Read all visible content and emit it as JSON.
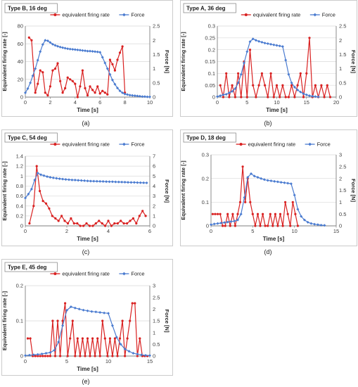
{
  "figure": {
    "panel_labels": [
      "(a)",
      "(b)",
      "(c)",
      "(d)",
      "(e)"
    ]
  },
  "colors": {
    "rate": "#d92121",
    "force": "#4a7bd0",
    "grid": "#d9d9d9",
    "axis": "#7f7f7f"
  },
  "chart_data": [
    {
      "type": "line",
      "title": "Type B, 16 deg",
      "xlabel": "Time  [s]",
      "ylabel": "Equivalent firing rate  [-]",
      "y2label": "Force  [N]",
      "xlim": [
        0,
        10
      ],
      "xticks": [
        "0",
        "2",
        "4",
        "6",
        "8",
        "10"
      ],
      "ylim": [
        0,
        80
      ],
      "yticks": [
        "0",
        "20",
        "40",
        "60",
        "80"
      ],
      "y2lim": [
        0,
        2.5
      ],
      "y2ticks": [
        "0",
        "0.5",
        "1",
        "1.5",
        "2",
        "2.5"
      ],
      "legend": "top",
      "series": [
        {
          "name": "equivalent firing rate",
          "axis": "left",
          "marker": "circle",
          "x": [
            0.3,
            0.5,
            0.8,
            1.0,
            1.2,
            1.4,
            1.6,
            1.8,
            2.0,
            2.2,
            2.4,
            2.6,
            2.8,
            3.0,
            3.2,
            3.4,
            3.6,
            3.8,
            4.0,
            4.2,
            4.4,
            4.6,
            4.8,
            5.0,
            5.2,
            5.4,
            5.6,
            5.8,
            6.0,
            6.2,
            6.4,
            6.6,
            6.8,
            7.0,
            7.2,
            7.4,
            7.6,
            7.8,
            8.0
          ],
          "y": [
            67,
            64,
            5,
            15,
            30,
            28,
            5,
            2,
            12,
            30,
            32,
            38,
            18,
            5,
            10,
            22,
            20,
            18,
            15,
            0,
            12,
            30,
            10,
            2,
            12,
            8,
            5,
            12,
            4,
            7,
            5,
            3,
            42,
            37,
            30,
            42,
            50,
            57,
            5
          ]
        },
        {
          "name": "Force",
          "axis": "right",
          "marker": "diamond",
          "x": [
            0,
            0.2,
            0.4,
            0.6,
            0.8,
            1.0,
            1.2,
            1.4,
            1.6,
            1.8,
            2.0,
            2.2,
            2.4,
            2.6,
            2.8,
            3.0,
            3.2,
            3.4,
            3.6,
            3.8,
            4.0,
            4.2,
            4.4,
            4.6,
            4.8,
            5.0,
            5.2,
            5.4,
            5.6,
            5.8,
            6.0,
            6.2,
            6.4,
            6.6,
            6.8,
            7.0,
            7.2,
            7.4,
            7.6,
            7.8,
            8.0,
            8.2,
            8.4,
            8.6,
            8.8,
            9.0,
            9.2,
            9.4,
            9.6,
            9.8,
            10.0
          ],
          "y": [
            0.15,
            0.3,
            0.5,
            0.75,
            1.0,
            1.3,
            1.6,
            1.85,
            2.0,
            1.98,
            1.92,
            1.86,
            1.82,
            1.79,
            1.76,
            1.74,
            1.72,
            1.7,
            1.69,
            1.68,
            1.67,
            1.66,
            1.65,
            1.64,
            1.63,
            1.62,
            1.62,
            1.61,
            1.6,
            1.59,
            1.58,
            1.4,
            1.2,
            1.0,
            0.8,
            0.6,
            0.45,
            0.32,
            0.22,
            0.15,
            0.11,
            0.09,
            0.07,
            0.06,
            0.05,
            0.04,
            0.03,
            0.02,
            0.02,
            0.01,
            0.01
          ]
        }
      ]
    },
    {
      "type": "line",
      "title": "Type A, 36 deg",
      "xlabel": "Time  [s]",
      "ylabel": "Equivalent firing rate  [-]",
      "y2label": "Force  [N]",
      "xlim": [
        0,
        20
      ],
      "xticks": [
        "0",
        "5",
        "10",
        "15",
        "20"
      ],
      "ylim": [
        0,
        0.3
      ],
      "yticks": [
        "0",
        "0.05",
        "0.1",
        "0.15",
        "0.2",
        "0.25",
        "0.3"
      ],
      "y2lim": [
        0,
        2.5
      ],
      "y2ticks": [
        "0",
        "0.5",
        "1",
        "1.5",
        "2",
        "2.5"
      ],
      "legend": "top",
      "series": [
        {
          "name": "equivalent firing rate",
          "axis": "left",
          "marker": "circle",
          "x": [
            0.5,
            1.0,
            1.5,
            2.0,
            2.5,
            3.0,
            3.5,
            4.0,
            4.5,
            5.0,
            5.5,
            6.0,
            6.5,
            7.0,
            7.5,
            8.0,
            8.5,
            9.0,
            9.5,
            10.0,
            10.5,
            11.0,
            11.5,
            12.0,
            12.5,
            13.0,
            13.5,
            14.0,
            14.5,
            15.0,
            15.5,
            16.0,
            16.5,
            17.0,
            17.5,
            18.0,
            18.5,
            19.0
          ],
          "y": [
            0.05,
            0,
            0.1,
            0,
            0.05,
            0,
            0.1,
            0,
            0.15,
            0,
            0.2,
            0.05,
            0,
            0.05,
            0.1,
            0.05,
            0,
            0.1,
            0,
            0.05,
            0,
            0.05,
            0,
            0,
            0.05,
            0,
            0.05,
            0.1,
            0,
            0.1,
            0.25,
            0,
            0.05,
            0,
            0.05,
            0,
            0.05,
            0
          ]
        },
        {
          "name": "Force",
          "axis": "right",
          "marker": "diamond",
          "x": [
            0,
            0.5,
            1,
            1.5,
            2,
            2.5,
            3,
            3.5,
            4,
            4.5,
            5,
            5.5,
            6,
            6.5,
            7,
            7.5,
            8,
            8.5,
            9,
            9.5,
            10,
            10.5,
            11,
            11.5,
            12,
            12.5,
            13,
            13.5,
            14,
            14.5,
            15,
            15.5,
            16,
            16.5,
            17
          ],
          "y": [
            0.02,
            0.05,
            0.08,
            0.1,
            0.15,
            0.2,
            0.3,
            0.5,
            0.8,
            1.2,
            1.6,
            1.95,
            2.05,
            2.0,
            1.96,
            1.93,
            1.9,
            1.88,
            1.86,
            1.84,
            1.82,
            1.8,
            1.78,
            1.3,
            0.8,
            0.5,
            0.35,
            0.25,
            0.18,
            0.12,
            0.08,
            0.05,
            0.03,
            0.02,
            0.01
          ]
        }
      ]
    },
    {
      "type": "line",
      "title": "Type C, 54 deg",
      "xlabel": "Time  [s]",
      "ylabel": "Equivalent firing rate  [-]",
      "y2label": "Force  [N]",
      "xlim": [
        0,
        6
      ],
      "xticks": [
        "0",
        "2",
        "4",
        "6"
      ],
      "ylim": [
        0,
        1.4
      ],
      "yticks": [
        "0",
        "0.2",
        "0.4",
        "0.6",
        "0.8",
        "1",
        "1.2",
        "1.4"
      ],
      "y2lim": [
        0,
        7
      ],
      "y2ticks": [
        "0",
        "1",
        "2",
        "3",
        "4",
        "5",
        "6",
        "7"
      ],
      "legend": "top",
      "series": [
        {
          "name": "equivalent firing rate",
          "axis": "left",
          "marker": "circle",
          "x": [
            0.2,
            0.4,
            0.55,
            0.7,
            0.85,
            1.0,
            1.15,
            1.3,
            1.45,
            1.6,
            1.75,
            1.9,
            2.05,
            2.2,
            2.35,
            2.5,
            2.65,
            2.8,
            2.95,
            3.1,
            3.25,
            3.4,
            3.55,
            3.7,
            3.85,
            4.0,
            4.15,
            4.3,
            4.45,
            4.6,
            4.75,
            4.9,
            5.05,
            5.2,
            5.35,
            5.5,
            5.65,
            5.8
          ],
          "y": [
            0.05,
            0.4,
            1.2,
            0.7,
            0.5,
            0.45,
            0.35,
            0.2,
            0.15,
            0.1,
            0.2,
            0.1,
            0.05,
            0.15,
            0.05,
            0.05,
            0,
            0,
            0.05,
            0,
            0,
            0.05,
            0.1,
            0.05,
            0,
            0.1,
            0,
            0.05,
            0.05,
            0.1,
            0.05,
            0.05,
            0.1,
            0.15,
            0.05,
            0.2,
            0.3,
            0.2
          ]
        },
        {
          "name": "Force",
          "axis": "right",
          "marker": "diamond",
          "x": [
            0,
            0.15,
            0.3,
            0.45,
            0.6,
            0.75,
            0.9,
            1.05,
            1.2,
            1.35,
            1.5,
            1.65,
            1.8,
            1.95,
            2.1,
            2.25,
            2.4,
            2.55,
            2.7,
            2.85,
            3.0,
            3.15,
            3.3,
            3.45,
            3.6,
            3.75,
            3.9,
            4.05,
            4.2,
            4.35,
            4.5,
            4.65,
            4.8,
            4.95,
            5.1,
            5.25,
            5.4,
            5.55,
            5.7,
            5.85
          ],
          "y": [
            2.8,
            3.2,
            3.7,
            4.6,
            5.3,
            5.15,
            5.05,
            4.95,
            4.88,
            4.82,
            4.78,
            4.74,
            4.7,
            4.67,
            4.64,
            4.62,
            4.6,
            4.58,
            4.56,
            4.54,
            4.52,
            4.5,
            4.49,
            4.48,
            4.47,
            4.46,
            4.45,
            4.44,
            4.43,
            4.42,
            4.41,
            4.4,
            4.39,
            4.38,
            4.37,
            4.36,
            4.35,
            4.34,
            4.33,
            4.32
          ]
        }
      ]
    },
    {
      "type": "line",
      "title": "Type D, 18 deg",
      "xlabel": "Time  [s]",
      "ylabel": "Equivalent firing rate  [-]",
      "y2label": "Force  [N]",
      "xlim": [
        0,
        15
      ],
      "xticks": [
        "0",
        "5",
        "10",
        "15"
      ],
      "ylim": [
        0,
        0.3
      ],
      "yticks": [
        "0",
        "0.1",
        "0.2",
        "0.3"
      ],
      "y2lim": [
        0,
        3
      ],
      "y2ticks": [
        "0",
        "0.5",
        "1",
        "1.5",
        "2",
        "2.5",
        "3"
      ],
      "legend": "top",
      "series": [
        {
          "name": "equivalent firing rate",
          "axis": "left",
          "marker": "circle",
          "x": [
            0.2,
            0.5,
            0.8,
            1.1,
            1.4,
            1.7,
            2.0,
            2.3,
            2.6,
            2.9,
            3.2,
            3.5,
            3.8,
            4.1,
            4.4,
            4.7,
            5.0,
            5.3,
            5.6,
            5.9,
            6.2,
            6.5,
            6.8,
            7.1,
            7.4,
            7.7,
            8.0,
            8.3,
            8.6,
            8.9,
            9.2,
            9.5,
            9.8,
            10.1,
            10.4
          ],
          "y": [
            0.05,
            0.05,
            0.05,
            0.05,
            0,
            0,
            0.05,
            0,
            0.05,
            0,
            0.05,
            0.1,
            0.25,
            0.1,
            0.2,
            0.1,
            0.05,
            0,
            0.05,
            0,
            0.05,
            0,
            0,
            0.05,
            0,
            0.05,
            0,
            0.05,
            0,
            0.1,
            0.05,
            0,
            0.1,
            0.05,
            0
          ]
        },
        {
          "name": "Force",
          "axis": "right",
          "marker": "diamond",
          "x": [
            0,
            0.4,
            0.8,
            1.2,
            1.6,
            2.0,
            2.4,
            2.8,
            3.2,
            3.6,
            4.0,
            4.4,
            4.8,
            5.2,
            5.6,
            6.0,
            6.4,
            6.8,
            7.2,
            7.6,
            8.0,
            8.4,
            8.8,
            9.2,
            9.6,
            10.0,
            10.4,
            10.8,
            11.2,
            11.6,
            12.0,
            12.4,
            12.8,
            13.2,
            13.6
          ],
          "y": [
            0.05,
            0.08,
            0.1,
            0.12,
            0.14,
            0.16,
            0.18,
            0.2,
            0.25,
            0.5,
            1.2,
            2.05,
            2.2,
            2.1,
            2.05,
            2.0,
            1.95,
            1.92,
            1.9,
            1.88,
            1.86,
            1.84,
            1.82,
            1.8,
            1.78,
            1.3,
            0.7,
            0.4,
            0.25,
            0.15,
            0.1,
            0.07,
            0.05,
            0.03,
            0.02
          ]
        }
      ]
    },
    {
      "type": "line",
      "title": "Type E, 45 deg",
      "xlabel": "Time  [s]",
      "ylabel": "Equivalent firing rate  [-]",
      "y2label": "Force  [N]",
      "xlim": [
        0,
        15
      ],
      "xticks": [
        "0",
        "5",
        "10",
        "15"
      ],
      "ylim": [
        0,
        0.2
      ],
      "yticks": [
        "0",
        "0.1",
        "0.2"
      ],
      "y2lim": [
        0,
        3
      ],
      "y2ticks": [
        "0",
        "0.5",
        "1",
        "1.5",
        "2",
        "2.5",
        "3"
      ],
      "legend": "top",
      "series": [
        {
          "name": "equivalent firing rate",
          "axis": "left",
          "marker": "circle",
          "x": [
            0.3,
            0.6,
            0.9,
            1.2,
            1.5,
            1.8,
            2.1,
            2.4,
            2.7,
            3.0,
            3.3,
            3.6,
            3.9,
            4.2,
            4.5,
            4.8,
            5.1,
            5.4,
            5.7,
            6.0,
            6.3,
            6.6,
            6.9,
            7.2,
            7.5,
            7.8,
            8.1,
            8.4,
            8.7,
            9.0,
            9.3,
            9.6,
            9.9,
            10.2,
            10.5,
            10.8,
            11.1,
            11.4,
            11.7,
            12.0,
            12.3,
            12.6,
            12.9,
            13.2,
            13.5,
            13.8,
            14.1,
            14.4,
            14.7
          ],
          "y": [
            0.05,
            0.05,
            0,
            0,
            0,
            0,
            0,
            0,
            0,
            0,
            0.1,
            0,
            0.1,
            0,
            0.1,
            0.15,
            0,
            0.05,
            0.1,
            0,
            0.05,
            0,
            0.05,
            0,
            0.05,
            0,
            0.05,
            0,
            0.05,
            0,
            0.1,
            0.05,
            0,
            0.05,
            0,
            0.05,
            0,
            0.05,
            0.1,
            0,
            0.05,
            0.1,
            0.15,
            0.15,
            0,
            0.05,
            0,
            0,
            0
          ]
        },
        {
          "name": "Force",
          "axis": "right",
          "marker": "diamond",
          "x": [
            0,
            0.5,
            1,
            1.5,
            2,
            2.5,
            3,
            3.5,
            4,
            4.5,
            5,
            5.5,
            6,
            6.5,
            7,
            7.5,
            8,
            8.5,
            9,
            9.5,
            10,
            10.5,
            11,
            11.5,
            12,
            12.5,
            13,
            13.5,
            14,
            14.5,
            15
          ],
          "y": [
            0.02,
            0.04,
            0.05,
            0.07,
            0.09,
            0.12,
            0.15,
            0.25,
            0.6,
            1.3,
            1.95,
            2.1,
            2.05,
            2.0,
            1.96,
            1.93,
            1.9,
            1.88,
            1.86,
            1.84,
            1.82,
            1.3,
            0.8,
            0.5,
            0.3,
            0.2,
            0.12,
            0.08,
            0.05,
            0.03,
            0.02
          ]
        }
      ]
    }
  ]
}
